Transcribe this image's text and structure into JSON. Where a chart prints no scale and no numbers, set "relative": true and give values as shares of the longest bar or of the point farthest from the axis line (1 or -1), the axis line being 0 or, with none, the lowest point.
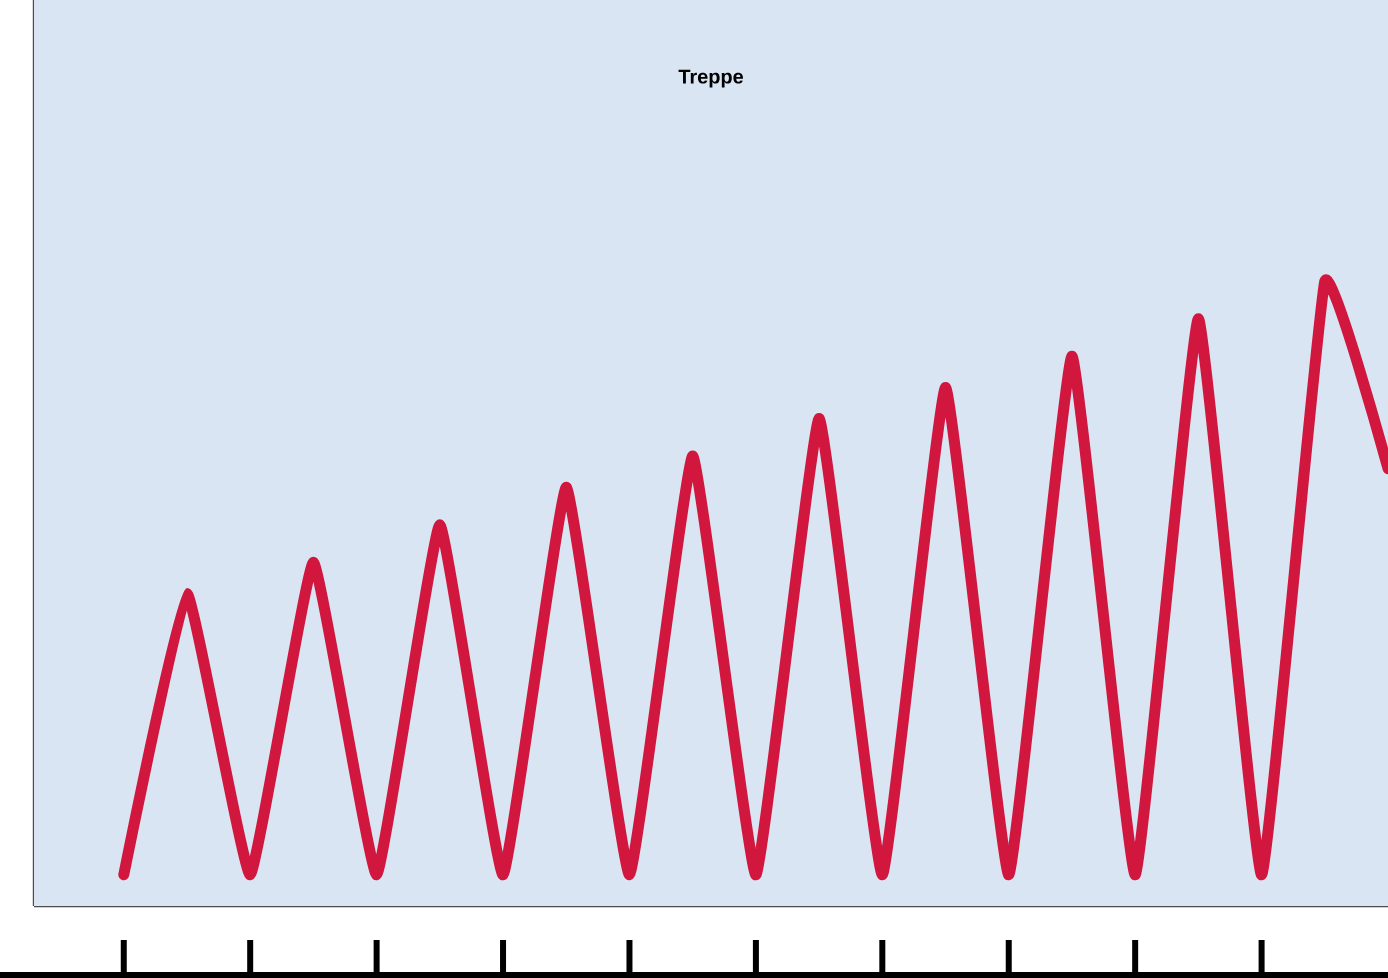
{
  "chart_data": {
    "type": "line",
    "title": "Treppe",
    "relative": true,
    "color": "#d2173f",
    "categories": [
      null,
      null,
      null,
      null,
      null,
      null,
      null,
      null,
      null,
      null,
      null,
      null,
      null,
      null,
      null,
      null,
      null,
      null,
      null,
      null,
      null
    ],
    "values": [
      0.05,
      0.5,
      0.05,
      0.55,
      0.05,
      0.61,
      0.05,
      0.67,
      0.05,
      0.72,
      0.05,
      0.78,
      0.05,
      0.83,
      0.05,
      0.88,
      0.05,
      0.94,
      0.05,
      1,
      0.7
    ]
  }
}
